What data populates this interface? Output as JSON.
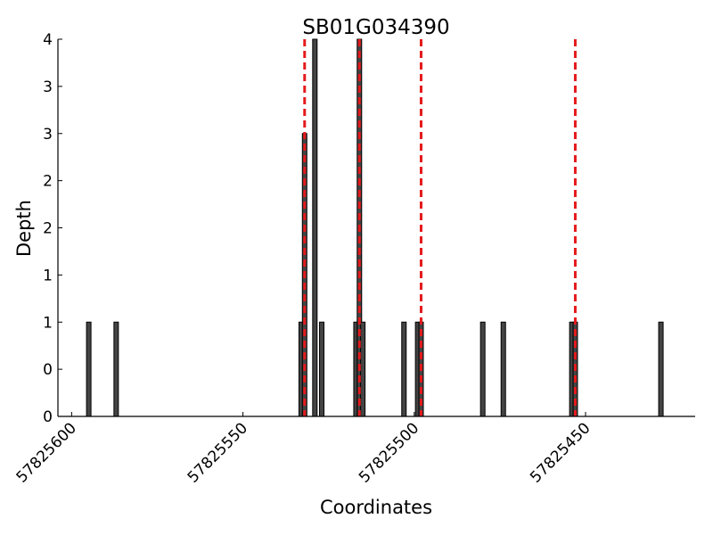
{
  "chart_data": {
    "type": "bar",
    "title": "SB01G034390",
    "x_label": "Coordinates",
    "y_label": "Depth",
    "x": [
      57825595,
      57825587,
      57825533,
      57825532,
      57825529,
      57825527,
      57825517,
      57825516,
      57825515,
      57825503,
      57825499,
      57825498,
      57825480,
      57825474,
      57825454,
      57825453,
      57825428
    ],
    "values": [
      1,
      1,
      1,
      3,
      4,
      1,
      1,
      4,
      1,
      1,
      1,
      1,
      1,
      1,
      1,
      1,
      1
    ],
    "color": "#444444",
    "xlim": [
      57825604,
      57825418
    ],
    "xticks": [
      57825600,
      57825550,
      57825500,
      57825450
    ],
    "ylim": [
      0,
      4
    ],
    "yticks": [
      0,
      {
        "value": 0.5,
        "label": "0"
      },
      1,
      {
        "value": 1.5,
        "label": "1"
      },
      2,
      {
        "value": 2.5,
        "label": "2"
      },
      3,
      {
        "value": 3.5,
        "label": "3"
      },
      4
    ],
    "vlines": [
      57825532,
      57825516,
      57825498,
      57825453
    ],
    "vline_color": "#e41a1c"
  }
}
